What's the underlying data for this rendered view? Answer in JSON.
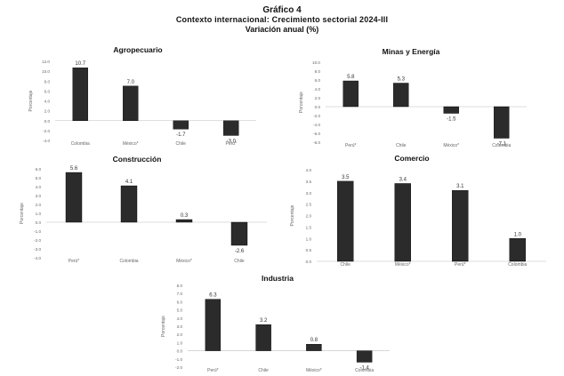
{
  "header": {
    "title": "Gráfico 4",
    "subtitle": "Contexto internacional: Crecimiento sectorial 2024-III",
    "subtitle2": "Variación anual (%)"
  },
  "bar_color": "#2b2b2b",
  "chart_data": [
    {
      "type": "bar",
      "title": "Agropecuario",
      "ylabel": "Porcentaje",
      "ylim": [
        -4,
        12
      ],
      "yticks": [
        "12.0",
        "10.0",
        "8.0",
        "6.0",
        "4.0",
        "2.0",
        "0.0",
        "-2.0",
        "-4.0"
      ],
      "categories": [
        "Colombia",
        "México*",
        "Chile",
        "Perú*"
      ],
      "values": [
        10.7,
        7.0,
        -1.7,
        -3.0
      ],
      "labels": [
        "10.7",
        "7.0",
        "-1.7",
        "-3.0"
      ]
    },
    {
      "type": "bar",
      "title": "Minas y Energía",
      "ylabel": "Porcentaje",
      "ylim": [
        -8,
        10
      ],
      "yticks": [
        "10.0",
        "8.0",
        "6.0",
        "4.0",
        "2.0",
        "0.0",
        "-2.0",
        "-4.0",
        "-6.0",
        "-8.0"
      ],
      "categories": [
        "Perú*",
        "Chile",
        "México*",
        "Colombia"
      ],
      "values": [
        5.8,
        5.3,
        -1.5,
        -7.1
      ],
      "labels": [
        "5.8",
        "5.3",
        "-1.5",
        "-7.1"
      ]
    },
    {
      "type": "bar",
      "title": "Construcción",
      "ylabel": "Porcentaje",
      "ylim": [
        -4,
        6
      ],
      "yticks": [
        "6.0",
        "5.0",
        "4.0",
        "3.0",
        "2.0",
        "1.0",
        "0.0",
        "-1.0",
        "-2.0",
        "-3.0",
        "-4.0"
      ],
      "categories": [
        "Perú*",
        "Colombia",
        "México*",
        "Chile"
      ],
      "values": [
        5.6,
        4.1,
        0.3,
        -2.6
      ],
      "labels": [
        "5.6",
        "4.1",
        "0.3",
        "-2.6"
      ]
    },
    {
      "type": "bar",
      "title": "Comercio",
      "ylabel": "Porcentaje",
      "ylim": [
        0,
        4
      ],
      "yticks": [
        "4.0",
        "3.5",
        "3.0",
        "2.5",
        "2.0",
        "1.5",
        "1.0",
        "0.5",
        "0.0"
      ],
      "categories": [
        "Chile",
        "México*",
        "Perú*",
        "Colombia"
      ],
      "values": [
        3.5,
        3.4,
        3.1,
        1.0
      ],
      "labels": [
        "3.5",
        "3.4",
        "3.1",
        "1.0"
      ]
    },
    {
      "type": "bar",
      "title": "Industria",
      "ylabel": "Porcentaje",
      "ylim": [
        -2,
        8
      ],
      "yticks": [
        "8.0",
        "7.0",
        "6.0",
        "5.0",
        "4.0",
        "3.0",
        "2.0",
        "1.0",
        "0.0",
        "-1.0",
        "-2.0"
      ],
      "categories": [
        "Perú*",
        "Chile",
        "México*",
        "Colombia"
      ],
      "values": [
        6.3,
        3.2,
        0.8,
        -1.4
      ],
      "labels": [
        "6.3",
        "3.2",
        "0.8",
        "-1.4"
      ]
    }
  ]
}
